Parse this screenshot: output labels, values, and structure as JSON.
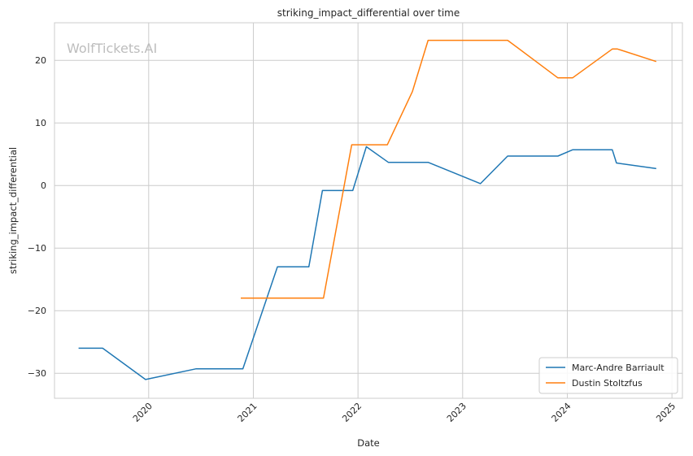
{
  "chart_data": {
    "type": "line",
    "title": "striking_impact_differential over time",
    "xlabel": "Date",
    "ylabel": "striking_impact_differential",
    "watermark": "WolfTickets.AI",
    "xlim": [
      2019.1,
      2025.1
    ],
    "ylim": [
      -34,
      26
    ],
    "xticks": [
      2020,
      2021,
      2022,
      2023,
      2024,
      2025
    ],
    "xtick_labels": [
      "2020",
      "2021",
      "2022",
      "2023",
      "2024",
      "2025"
    ],
    "yticks": [
      -30,
      -20,
      -10,
      0,
      10,
      20
    ],
    "ytick_labels": [
      "−30",
      "−20",
      "−10",
      "0",
      "10",
      "20"
    ],
    "grid": true,
    "legend_position": "lower-right",
    "series": [
      {
        "name": "Marc-Andre Barriault",
        "color": "#1f77b4",
        "x": [
          2019.33,
          2019.56,
          2019.97,
          2020.45,
          2020.9,
          2021.23,
          2021.53,
          2021.66,
          2021.95,
          2022.08,
          2022.29,
          2022.67,
          2023.17,
          2023.43,
          2023.91,
          2024.05,
          2024.43,
          2024.47,
          2024.85
        ],
        "y": [
          -26,
          -26,
          -31,
          -29.3,
          -29.3,
          -13,
          -13,
          -0.8,
          -0.8,
          6.2,
          3.7,
          3.7,
          0.3,
          4.7,
          4.7,
          5.7,
          5.7,
          3.6,
          2.7
        ]
      },
      {
        "name": "Dustin Stoltzfus",
        "color": "#ff7f0e",
        "x": [
          2020.88,
          2021.67,
          2021.94,
          2022.28,
          2022.52,
          2022.67,
          2023.43,
          2023.91,
          2024.05,
          2024.43,
          2024.48,
          2024.85
        ],
        "y": [
          -18,
          -18,
          6.5,
          6.5,
          15,
          23.2,
          23.2,
          17.2,
          17.2,
          21.8,
          21.8,
          19.8
        ]
      }
    ]
  }
}
